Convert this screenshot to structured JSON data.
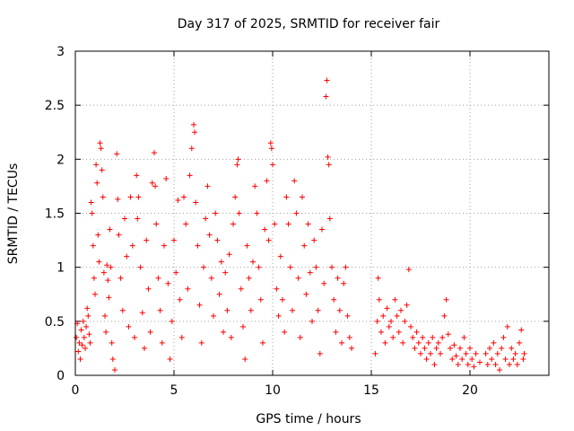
{
  "chart_data": {
    "type": "scatter",
    "title": "Day 317 of 2025, SRMTID for receiver fair",
    "xlabel": "GPS time / hours",
    "ylabel": "SRMTID / TECUs",
    "xlim": [
      0,
      24
    ],
    "ylim": [
      0,
      3
    ],
    "x_ticks": [
      0,
      5,
      10,
      15,
      20
    ],
    "x_tick_labels": [
      "0",
      "5",
      "10",
      "15",
      "20"
    ],
    "y_ticks": [
      0,
      0.5,
      1,
      1.5,
      2,
      2.5,
      3
    ],
    "y_tick_labels": [
      "0",
      "0.5",
      "1",
      "1.5",
      "2",
      "2.5",
      "3"
    ],
    "grid": true,
    "marker": "plus",
    "colors": {
      "series": "#ff0000",
      "grid": "#a0a0a0",
      "axis": "#000000"
    },
    "series": [
      {
        "name": "SRMTID",
        "points": [
          [
            0.05,
            0.35
          ],
          [
            0.1,
            0.48
          ],
          [
            0.15,
            0.22
          ],
          [
            0.2,
            0.3
          ],
          [
            0.25,
            0.15
          ],
          [
            0.3,
            0.42
          ],
          [
            0.35,
            0.28
          ],
          [
            0.4,
            0.5
          ],
          [
            0.45,
            0.35
          ],
          [
            0.5,
            0.25
          ],
          [
            0.55,
            0.45
          ],
          [
            0.6,
            0.62
          ],
          [
            0.65,
            0.55
          ],
          [
            0.7,
            0.38
          ],
          [
            0.75,
            0.3
          ],
          [
            0.8,
            1.6
          ],
          [
            0.85,
            1.5
          ],
          [
            0.9,
            1.2
          ],
          [
            0.95,
            0.9
          ],
          [
            1.0,
            0.75
          ],
          [
            1.05,
            1.95
          ],
          [
            1.1,
            1.78
          ],
          [
            1.15,
            1.3
          ],
          [
            1.2,
            1.05
          ],
          [
            1.25,
            2.15
          ],
          [
            1.3,
            2.1
          ],
          [
            1.35,
            1.9
          ],
          [
            1.4,
            1.65
          ],
          [
            1.45,
            0.95
          ],
          [
            1.5,
            0.55
          ],
          [
            1.55,
            0.4
          ],
          [
            1.6,
            1.02
          ],
          [
            1.65,
            0.88
          ],
          [
            1.7,
            0.72
          ],
          [
            1.75,
            1.35
          ],
          [
            1.8,
            1.0
          ],
          [
            1.85,
            0.3
          ],
          [
            1.9,
            0.15
          ],
          [
            2.0,
            0.05
          ],
          [
            2.1,
            2.05
          ],
          [
            2.15,
            1.63
          ],
          [
            2.2,
            1.3
          ],
          [
            2.3,
            0.9
          ],
          [
            2.4,
            0.6
          ],
          [
            2.5,
            1.45
          ],
          [
            2.6,
            1.1
          ],
          [
            2.7,
            0.45
          ],
          [
            2.8,
            1.65
          ],
          [
            2.9,
            1.2
          ],
          [
            3.0,
            0.35
          ],
          [
            3.1,
            1.85
          ],
          [
            3.15,
            1.45
          ],
          [
            3.2,
            1.65
          ],
          [
            3.3,
            1.0
          ],
          [
            3.4,
            0.58
          ],
          [
            3.5,
            0.25
          ],
          [
            3.6,
            1.25
          ],
          [
            3.7,
            0.8
          ],
          [
            3.8,
            0.4
          ],
          [
            3.9,
            1.78
          ],
          [
            4.0,
            2.06
          ],
          [
            4.05,
            1.75
          ],
          [
            4.1,
            1.4
          ],
          [
            4.2,
            0.9
          ],
          [
            4.3,
            0.6
          ],
          [
            4.4,
            0.3
          ],
          [
            4.5,
            1.2
          ],
          [
            4.6,
            1.82
          ],
          [
            4.7,
            0.85
          ],
          [
            4.8,
            0.15
          ],
          [
            4.9,
            0.5
          ],
          [
            5.0,
            1.25
          ],
          [
            5.1,
            0.95
          ],
          [
            5.2,
            1.62
          ],
          [
            5.3,
            0.7
          ],
          [
            5.4,
            0.35
          ],
          [
            5.5,
            1.65
          ],
          [
            5.6,
            1.4
          ],
          [
            5.7,
            0.8
          ],
          [
            5.8,
            1.85
          ],
          [
            5.9,
            2.1
          ],
          [
            6.0,
            2.32
          ],
          [
            6.05,
            2.25
          ],
          [
            6.1,
            1.6
          ],
          [
            6.2,
            1.2
          ],
          [
            6.3,
            0.65
          ],
          [
            6.4,
            0.3
          ],
          [
            6.5,
            1.0
          ],
          [
            6.6,
            1.45
          ],
          [
            6.7,
            1.75
          ],
          [
            6.8,
            1.3
          ],
          [
            6.9,
            0.9
          ],
          [
            7.0,
            0.55
          ],
          [
            7.1,
            1.5
          ],
          [
            7.2,
            1.25
          ],
          [
            7.3,
            0.75
          ],
          [
            7.4,
            1.05
          ],
          [
            7.5,
            0.4
          ],
          [
            7.6,
            0.95
          ],
          [
            7.7,
            0.6
          ],
          [
            7.8,
            1.12
          ],
          [
            7.9,
            0.35
          ],
          [
            8.0,
            1.4
          ],
          [
            8.1,
            1.65
          ],
          [
            8.2,
            1.95
          ],
          [
            8.25,
            2.0
          ],
          [
            8.3,
            1.5
          ],
          [
            8.4,
            0.8
          ],
          [
            8.5,
            0.45
          ],
          [
            8.6,
            0.15
          ],
          [
            8.7,
            1.2
          ],
          [
            8.8,
            0.9
          ],
          [
            8.9,
            0.6
          ],
          [
            9.0,
            1.05
          ],
          [
            9.1,
            1.75
          ],
          [
            9.2,
            1.5
          ],
          [
            9.3,
            1.0
          ],
          [
            9.4,
            0.7
          ],
          [
            9.5,
            0.3
          ],
          [
            9.6,
            1.35
          ],
          [
            9.7,
            1.8
          ],
          [
            9.8,
            1.25
          ],
          [
            9.9,
            2.15
          ],
          [
            9.95,
            2.1
          ],
          [
            10.0,
            1.95
          ],
          [
            10.1,
            1.4
          ],
          [
            10.2,
            0.8
          ],
          [
            10.3,
            0.55
          ],
          [
            10.4,
            1.1
          ],
          [
            10.5,
            0.7
          ],
          [
            10.6,
            0.4
          ],
          [
            10.7,
            1.65
          ],
          [
            10.8,
            1.4
          ],
          [
            10.9,
            1.0
          ],
          [
            11.0,
            0.6
          ],
          [
            11.1,
            1.8
          ],
          [
            11.2,
            1.5
          ],
          [
            11.3,
            0.9
          ],
          [
            11.4,
            0.35
          ],
          [
            11.5,
            1.65
          ],
          [
            11.6,
            1.2
          ],
          [
            11.7,
            0.75
          ],
          [
            11.8,
            1.4
          ],
          [
            11.9,
            0.95
          ],
          [
            12.0,
            0.5
          ],
          [
            12.1,
            1.25
          ],
          [
            12.2,
            1.0
          ],
          [
            12.3,
            0.6
          ],
          [
            12.4,
            0.2
          ],
          [
            12.5,
            1.35
          ],
          [
            12.6,
            0.85
          ],
          [
            12.7,
            2.58
          ],
          [
            12.75,
            2.73
          ],
          [
            12.8,
            2.02
          ],
          [
            12.85,
            1.95
          ],
          [
            12.9,
            1.45
          ],
          [
            13.0,
            1.0
          ],
          [
            13.1,
            0.7
          ],
          [
            13.2,
            0.4
          ],
          [
            13.3,
            0.9
          ],
          [
            13.4,
            0.6
          ],
          [
            13.5,
            0.3
          ],
          [
            13.6,
            0.85
          ],
          [
            13.7,
            1.0
          ],
          [
            13.8,
            0.55
          ],
          [
            13.9,
            0.35
          ],
          [
            14.0,
            0.25
          ],
          [
            15.2,
            0.2
          ],
          [
            15.3,
            0.5
          ],
          [
            15.35,
            0.9
          ],
          [
            15.4,
            0.7
          ],
          [
            15.5,
            0.4
          ],
          [
            15.6,
            0.55
          ],
          [
            15.7,
            0.3
          ],
          [
            15.8,
            0.62
          ],
          [
            15.9,
            0.45
          ],
          [
            16.0,
            0.5
          ],
          [
            16.1,
            0.35
          ],
          [
            16.2,
            0.7
          ],
          [
            16.3,
            0.55
          ],
          [
            16.4,
            0.4
          ],
          [
            16.5,
            0.6
          ],
          [
            16.6,
            0.3
          ],
          [
            16.7,
            0.5
          ],
          [
            16.8,
            0.65
          ],
          [
            16.9,
            0.98
          ],
          [
            17.0,
            0.45
          ],
          [
            17.1,
            0.35
          ],
          [
            17.2,
            0.25
          ],
          [
            17.3,
            0.4
          ],
          [
            17.4,
            0.3
          ],
          [
            17.5,
            0.2
          ],
          [
            17.6,
            0.35
          ],
          [
            17.7,
            0.25
          ],
          [
            17.8,
            0.15
          ],
          [
            17.9,
            0.3
          ],
          [
            18.0,
            0.2
          ],
          [
            18.1,
            0.35
          ],
          [
            18.2,
            0.1
          ],
          [
            18.3,
            0.25
          ],
          [
            18.4,
            0.3
          ],
          [
            18.5,
            0.2
          ],
          [
            18.6,
            0.35
          ],
          [
            18.7,
            0.55
          ],
          [
            18.8,
            0.7
          ],
          [
            18.9,
            0.38
          ],
          [
            19.0,
            0.25
          ],
          [
            19.1,
            0.15
          ],
          [
            19.2,
            0.28
          ],
          [
            19.3,
            0.18
          ],
          [
            19.4,
            0.1
          ],
          [
            19.5,
            0.25
          ],
          [
            19.6,
            0.15
          ],
          [
            19.7,
            0.35
          ],
          [
            19.8,
            0.2
          ],
          [
            19.9,
            0.1
          ],
          [
            20.0,
            0.25
          ],
          [
            20.1,
            0.15
          ],
          [
            20.2,
            0.08
          ],
          [
            20.3,
            0.2
          ],
          [
            20.5,
            0.12
          ],
          [
            20.8,
            0.2
          ],
          [
            20.9,
            0.1
          ],
          [
            21.0,
            0.25
          ],
          [
            21.1,
            0.15
          ],
          [
            21.2,
            0.3
          ],
          [
            21.3,
            0.1
          ],
          [
            21.4,
            0.2
          ],
          [
            21.5,
            0.05
          ],
          [
            21.6,
            0.25
          ],
          [
            21.7,
            0.35
          ],
          [
            21.8,
            0.15
          ],
          [
            21.9,
            0.45
          ],
          [
            22.0,
            0.1
          ],
          [
            22.1,
            0.25
          ],
          [
            22.2,
            0.15
          ],
          [
            22.3,
            0.2
          ],
          [
            22.4,
            0.1
          ],
          [
            22.5,
            0.3
          ],
          [
            22.6,
            0.42
          ],
          [
            22.7,
            0.15
          ],
          [
            22.75,
            0.2
          ]
        ]
      }
    ]
  }
}
